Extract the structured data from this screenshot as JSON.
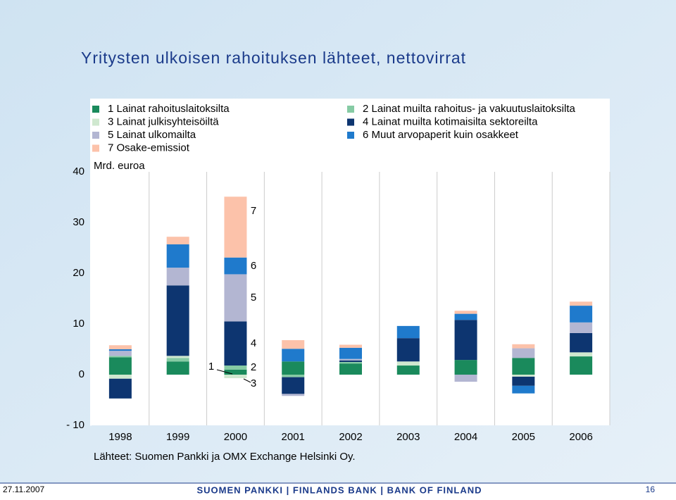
{
  "chart_data": {
    "type": "bar",
    "stacked": true,
    "title": "Yritysten ulkoisen rahoituksen lähteet, nettovirrat",
    "y_label": "Mrd. euroa",
    "categories": [
      "1998",
      "1999",
      "2000",
      "2001",
      "2002",
      "2003",
      "2004",
      "2005",
      "2006"
    ],
    "series": [
      {
        "name": "1 Lainat rahoituslaitoksilta",
        "color": "#1a8a5c",
        "values": [
          3.4,
          2.6,
          1.0,
          2.6,
          2.2,
          1.8,
          2.9,
          3.3,
          3.6
        ]
      },
      {
        "name": "2 Lainat muilta rahoitus- ja vakuutuslaitoksilta",
        "color": "#86cba4",
        "values": [
          0.3,
          0.7,
          0.8,
          -0.5,
          0.3,
          0,
          0,
          0,
          0
        ]
      },
      {
        "name": "3 Lainat julkisyhteisöiltä",
        "color": "#cfe8cf",
        "values": [
          -0.8,
          0.4,
          -0.7,
          0,
          0,
          0.8,
          0,
          -0.4,
          0.8
        ]
      },
      {
        "name": "4 Lainat muilta kotimaisilta sektoreilta",
        "color": "#0d3570",
        "values": [
          -3.9,
          13.9,
          8.7,
          -3.3,
          0.3,
          4.6,
          7.9,
          -1.8,
          3.8
        ]
      },
      {
        "name": "5 Lainat ulkomailta",
        "color": "#b3b6d2",
        "values": [
          1.0,
          3.5,
          9.3,
          -0.4,
          0.3,
          0,
          -1.4,
          1.9,
          2.1
        ]
      },
      {
        "name": "6 Muut arvopaperit kuin osakkeet",
        "color": "#1f7acc",
        "values": [
          0.3,
          4.6,
          3.3,
          2.5,
          2.2,
          2.4,
          1.2,
          -1.5,
          3.3
        ]
      },
      {
        "name": "7 Osake-emissiot",
        "color": "#fcc2aa",
        "values": [
          0.8,
          1.5,
          12.0,
          1.7,
          0.6,
          0,
          0.6,
          0.8,
          0.8
        ]
      }
    ],
    "annotations": [
      "1",
      "2",
      "3",
      "4",
      "5",
      "6",
      "7"
    ],
    "ylim": [
      -10,
      40
    ],
    "yticks": [
      {
        "value": -10,
        "label": "- 10"
      },
      0,
      10,
      20,
      30,
      40
    ],
    "grid": true,
    "source": "Lähteet: Suomen Pankki ja OMX Exchange Helsinki Oy.",
    "footer": {
      "date": "27.11.2007",
      "organization": "SUOMEN PANKKI | FINLANDS BANK | BANK OF FINLAND",
      "page": "16"
    }
  }
}
